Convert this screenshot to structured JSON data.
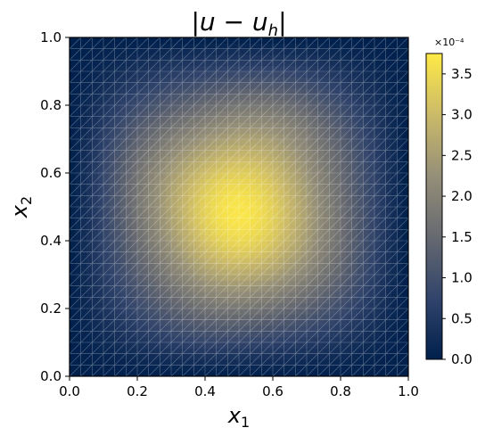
{
  "chart_data": {
    "type": "heatmap",
    "title": "|u − u_h|",
    "xlabel": "x_1",
    "ylabel": "x_2",
    "xlim": [
      0.0,
      1.0
    ],
    "ylim": [
      0.0,
      1.0
    ],
    "x_ticks": [
      "0.0",
      "0.2",
      "0.4",
      "0.6",
      "0.8",
      "1.0"
    ],
    "y_ticks": [
      "0.0",
      "0.2",
      "0.4",
      "0.6",
      "0.8",
      "1.0"
    ],
    "colorbar": {
      "min": 0.0,
      "max": 0.000375,
      "multiplier": "×10⁻⁴",
      "ticks": [
        "0.0",
        "0.5",
        "1.0",
        "1.5",
        "2.0",
        "2.5",
        "3.0",
        "3.5"
      ],
      "colormap": [
        "#00204d",
        "#31446b",
        "#666970",
        "#958f78",
        "#cbba69",
        "#ffea46"
      ]
    },
    "field": {
      "peak_value": 0.00037,
      "peak_location": [
        0.5,
        0.5
      ],
      "boundary_value": 0.0,
      "mesh": "triangular, ~30 divisions per side"
    },
    "grid": false
  }
}
